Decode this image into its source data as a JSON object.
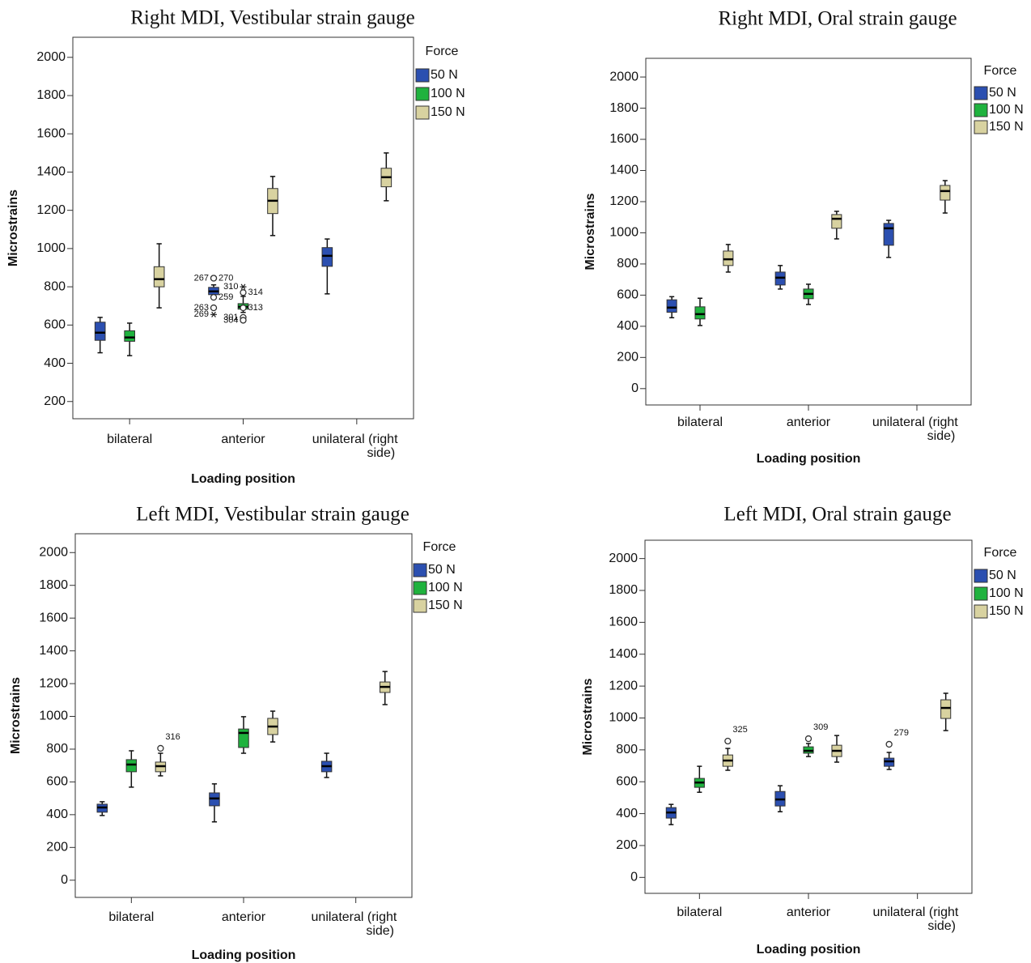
{
  "chart_data": [
    {
      "type": "box",
      "title": "Right MDI, Vestibular strain gauge",
      "x_label": "Loading position",
      "y_label": "Microstrains",
      "legend_title": "Force",
      "legend": "right",
      "categories": [
        "bilateral",
        "anterior",
        "unilateral (right side)"
      ],
      "ylim": [
        110,
        2105
      ],
      "yticks": [
        200,
        400,
        600,
        800,
        1000,
        1200,
        1400,
        1600,
        1800,
        2000
      ],
      "series": [
        {
          "name": "50 N",
          "color": "#2b4fb0",
          "values": [
            {
              "min": 455,
              "q1": 520,
              "median": 560,
              "q3": 615,
              "max": 640
            },
            {
              "min": 750,
              "q1": 759,
              "median": 776,
              "q3": 797,
              "max": 810
            },
            {
              "min": 763,
              "q1": 907,
              "median": 962,
              "q3": 1005,
              "max": 1050
            }
          ],
          "outliers": [
            [],
            [
              {
                "value": 845,
                "label": "267",
                "marker": "circle"
              },
              {
                "value": 845,
                "label": "270",
                "marker": "circle"
              },
              {
                "value": 690,
                "label": "263",
                "marker": "circle"
              },
              {
                "value": 745,
                "label": "259",
                "marker": "circle"
              },
              {
                "value": 655,
                "label": "269",
                "marker": "star"
              }
            ],
            []
          ]
        },
        {
          "name": "100 N",
          "color": "#1fb23e",
          "values": [
            {
              "min": 440,
              "q1": 515,
              "median": 535,
              "q3": 570,
              "max": 610
            },
            {
              "min": 666,
              "q1": 683,
              "median": 695,
              "q3": 712,
              "max": 750
            },
            null
          ],
          "outliers": [
            [],
            [
              {
                "value": 800,
                "label": "310",
                "marker": "star"
              },
              {
                "value": 770,
                "label": "314",
                "marker": "circle"
              },
              {
                "value": 640,
                "label": "301",
                "marker": "circle"
              },
              {
                "value": 690,
                "label": "313",
                "marker": "circle"
              },
              {
                "value": 625,
                "label": "304",
                "marker": "circle"
              }
            ],
            []
          ]
        },
        {
          "name": "150 N",
          "color": "#d8d2a0",
          "values": [
            {
              "min": 690,
              "q1": 800,
              "median": 840,
              "q3": 905,
              "max": 1025
            },
            {
              "min": 1068,
              "q1": 1183,
              "median": 1250,
              "q3": 1314,
              "max": 1377
            },
            {
              "min": 1250,
              "q1": 1323,
              "median": 1373,
              "q3": 1420,
              "max": 1500
            }
          ],
          "outliers": [
            [],
            [],
            []
          ]
        }
      ]
    },
    {
      "type": "box",
      "title": "Right MDI, Oral strain gauge",
      "x_label": "Loading position",
      "y_label": "Microstrains",
      "legend_title": "Force",
      "legend": "right",
      "categories": [
        "bilateral",
        "anterior",
        "unilateral (right side)"
      ],
      "ylim": [
        -105,
        2120
      ],
      "yticks": [
        0,
        200,
        400,
        600,
        800,
        1000,
        1200,
        1400,
        1600,
        1800,
        2000
      ],
      "series": [
        {
          "name": "50 N",
          "color": "#2b4fb0",
          "values": [
            {
              "min": 455,
              "q1": 490,
              "median": 520,
              "q3": 570,
              "max": 590
            },
            {
              "min": 639,
              "q1": 665,
              "median": 712,
              "q3": 748,
              "max": 790
            },
            {
              "min": 842,
              "q1": 920,
              "median": 1029,
              "q3": 1060,
              "max": 1080
            }
          ],
          "outliers": [
            [],
            [],
            []
          ]
        },
        {
          "name": "100 N",
          "color": "#1fb23e",
          "values": [
            {
              "min": 405,
              "q1": 447,
              "median": 478,
              "q3": 525,
              "max": 580
            },
            {
              "min": 540,
              "q1": 577,
              "median": 608,
              "q3": 639,
              "max": 670
            },
            null
          ],
          "outliers": [
            [],
            [],
            []
          ]
        },
        {
          "name": "150 N",
          "color": "#d8d2a0",
          "values": [
            {
              "min": 748,
              "q1": 790,
              "median": 830,
              "q3": 883,
              "max": 925
            },
            {
              "min": 961,
              "q1": 1029,
              "median": 1090,
              "q3": 1117,
              "max": 1138
            },
            {
              "min": 1127,
              "q1": 1210,
              "median": 1268,
              "q3": 1304,
              "max": 1335
            }
          ],
          "outliers": [
            [],
            [],
            []
          ]
        }
      ]
    },
    {
      "type": "box",
      "title": "Left MDI, Vestibular strain gauge",
      "x_label": "Loading position",
      "y_label": "Microstrains",
      "legend_title": "Force",
      "legend": "right",
      "categories": [
        "bilateral",
        "anterior",
        "unilateral (right side)"
      ],
      "ylim": [
        -105,
        2115
      ],
      "yticks": [
        0,
        200,
        400,
        600,
        800,
        1000,
        1200,
        1400,
        1600,
        1800,
        2000
      ],
      "series": [
        {
          "name": "50 N",
          "color": "#2b4fb0",
          "values": [
            {
              "min": 395,
              "q1": 415,
              "median": 444,
              "q3": 464,
              "max": 479
            },
            {
              "min": 356,
              "q1": 454,
              "median": 499,
              "q3": 533,
              "max": 588
            },
            {
              "min": 627,
              "q1": 662,
              "median": 696,
              "q3": 726,
              "max": 775
            }
          ],
          "outliers": [
            [],
            [],
            []
          ]
        },
        {
          "name": "100 N",
          "color": "#1fb23e",
          "values": [
            {
              "min": 568,
              "q1": 662,
              "median": 706,
              "q3": 736,
              "max": 790
            },
            {
              "min": 775,
              "q1": 810,
              "median": 899,
              "q3": 923,
              "max": 998
            },
            null
          ],
          "outliers": [
            [],
            [],
            []
          ]
        },
        {
          "name": "150 N",
          "color": "#d8d2a0",
          "values": [
            {
              "min": 637,
              "q1": 662,
              "median": 696,
              "q3": 721,
              "max": 775
            },
            {
              "min": 844,
              "q1": 889,
              "median": 938,
              "q3": 988,
              "max": 1032
            },
            {
              "min": 1072,
              "q1": 1146,
              "median": 1180,
              "q3": 1210,
              "max": 1274
            }
          ],
          "outliers": [
            [
              {
                "value": 805,
                "label": "316",
                "marker": "circle"
              }
            ],
            [],
            []
          ]
        }
      ]
    },
    {
      "type": "box",
      "title": "Left MDI, Oral strain gauge",
      "x_label": "Loading position",
      "y_label": "Microstrains",
      "legend_title": "Force",
      "legend": "right",
      "categories": [
        "bilateral",
        "anterior",
        "unilateral (right side)"
      ],
      "ylim": [
        -100,
        2115
      ],
      "yticks": [
        0,
        200,
        400,
        600,
        800,
        1000,
        1200,
        1400,
        1600,
        1800,
        2000
      ],
      "series": [
        {
          "name": "50 N",
          "color": "#2b4fb0",
          "values": [
            {
              "min": 331,
              "q1": 372,
              "median": 407,
              "q3": 438,
              "max": 458
            },
            {
              "min": 412,
              "q1": 448,
              "median": 489,
              "q3": 539,
              "max": 575
            },
            {
              "min": 677,
              "q1": 697,
              "median": 728,
              "q3": 748,
              "max": 784
            }
          ],
          "outliers": [
            [],
            [],
            [
              {
                "value": 835,
                "label": "279",
                "marker": "circle"
              }
            ]
          ]
        },
        {
          "name": "100 N",
          "color": "#1fb23e",
          "values": [
            {
              "min": 534,
              "q1": 565,
              "median": 595,
              "q3": 621,
              "max": 697
            },
            {
              "min": 758,
              "q1": 779,
              "median": 794,
              "q3": 819,
              "max": 840
            },
            null
          ],
          "outliers": [
            [],
            [
              {
                "value": 870,
                "label": "309",
                "marker": "circle"
              }
            ],
            []
          ]
        },
        {
          "name": "150 N",
          "color": "#d8d2a0",
          "values": [
            {
              "min": 672,
              "q1": 697,
              "median": 733,
              "q3": 768,
              "max": 809
            },
            {
              "min": 723,
              "q1": 758,
              "median": 794,
              "q3": 829,
              "max": 890
            },
            {
              "min": 921,
              "q1": 997,
              "median": 1063,
              "q3": 1114,
              "max": 1155
            }
          ],
          "outliers": [
            [
              {
                "value": 855,
                "label": "325",
                "marker": "circle"
              }
            ],
            [],
            []
          ]
        }
      ]
    }
  ]
}
